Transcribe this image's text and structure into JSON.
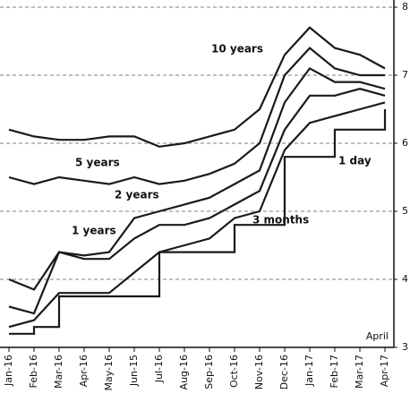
{
  "chart_data": {
    "type": "line",
    "categories": [
      "Jan-16",
      "Feb-16",
      "Mar-16",
      "Apr-16",
      "May-16",
      "Jun-15",
      "Jul-16",
      "Aug-16",
      "Sep-16",
      "Oct-16",
      "Nov-16",
      "Dec-16",
      "Jan-17",
      "Feb-17",
      "Mar-17",
      "Apr-17"
    ],
    "series": [
      {
        "name": "10 years",
        "color": "#1a1a1a",
        "values": [
          6.2,
          6.1,
          6.05,
          6.05,
          6.1,
          6.1,
          5.95,
          6.0,
          6.1,
          6.2,
          6.5,
          7.3,
          7.7,
          7.4,
          7.3,
          7.1
        ]
      },
      {
        "name": "5 years",
        "color": "#1a1a1a",
        "values": [
          5.5,
          5.4,
          5.5,
          5.45,
          5.4,
          5.5,
          5.4,
          5.45,
          5.55,
          5.7,
          6.0,
          7.0,
          7.4,
          7.1,
          7.0,
          7.0
        ]
      },
      {
        "name": "2 years",
        "color": "#1a1a1a",
        "values": [
          4.0,
          3.85,
          4.4,
          4.35,
          4.4,
          4.9,
          5.0,
          5.1,
          5.2,
          5.4,
          5.6,
          6.6,
          7.1,
          6.9,
          6.9,
          6.8
        ]
      },
      {
        "name": "1 years",
        "color": "#1a1a1a",
        "values": [
          3.6,
          3.5,
          4.4,
          4.3,
          4.3,
          4.6,
          4.8,
          4.8,
          4.9,
          5.1,
          5.3,
          6.2,
          6.7,
          6.7,
          6.8,
          6.7
        ]
      },
      {
        "name": "3 months",
        "color": "#1a1a1a",
        "values": [
          3.3,
          3.4,
          3.8,
          3.8,
          3.8,
          4.1,
          4.4,
          4.5,
          4.6,
          4.9,
          5.0,
          5.9,
          6.3,
          6.4,
          6.5,
          6.6
        ]
      },
      {
        "name": "1 day",
        "color": "#1a1a1a",
        "step": true,
        "values": [
          3.2,
          3.3,
          3.75,
          3.75,
          3.75,
          3.75,
          4.4,
          4.4,
          4.4,
          4.8,
          4.8,
          5.8,
          5.8,
          6.2,
          6.2,
          6.5
        ]
      }
    ],
    "annotations": [
      "April"
    ],
    "ylim": [
      3,
      8
    ],
    "yticks": [
      3,
      4,
      5,
      6,
      7,
      8
    ],
    "grid": true
  }
}
